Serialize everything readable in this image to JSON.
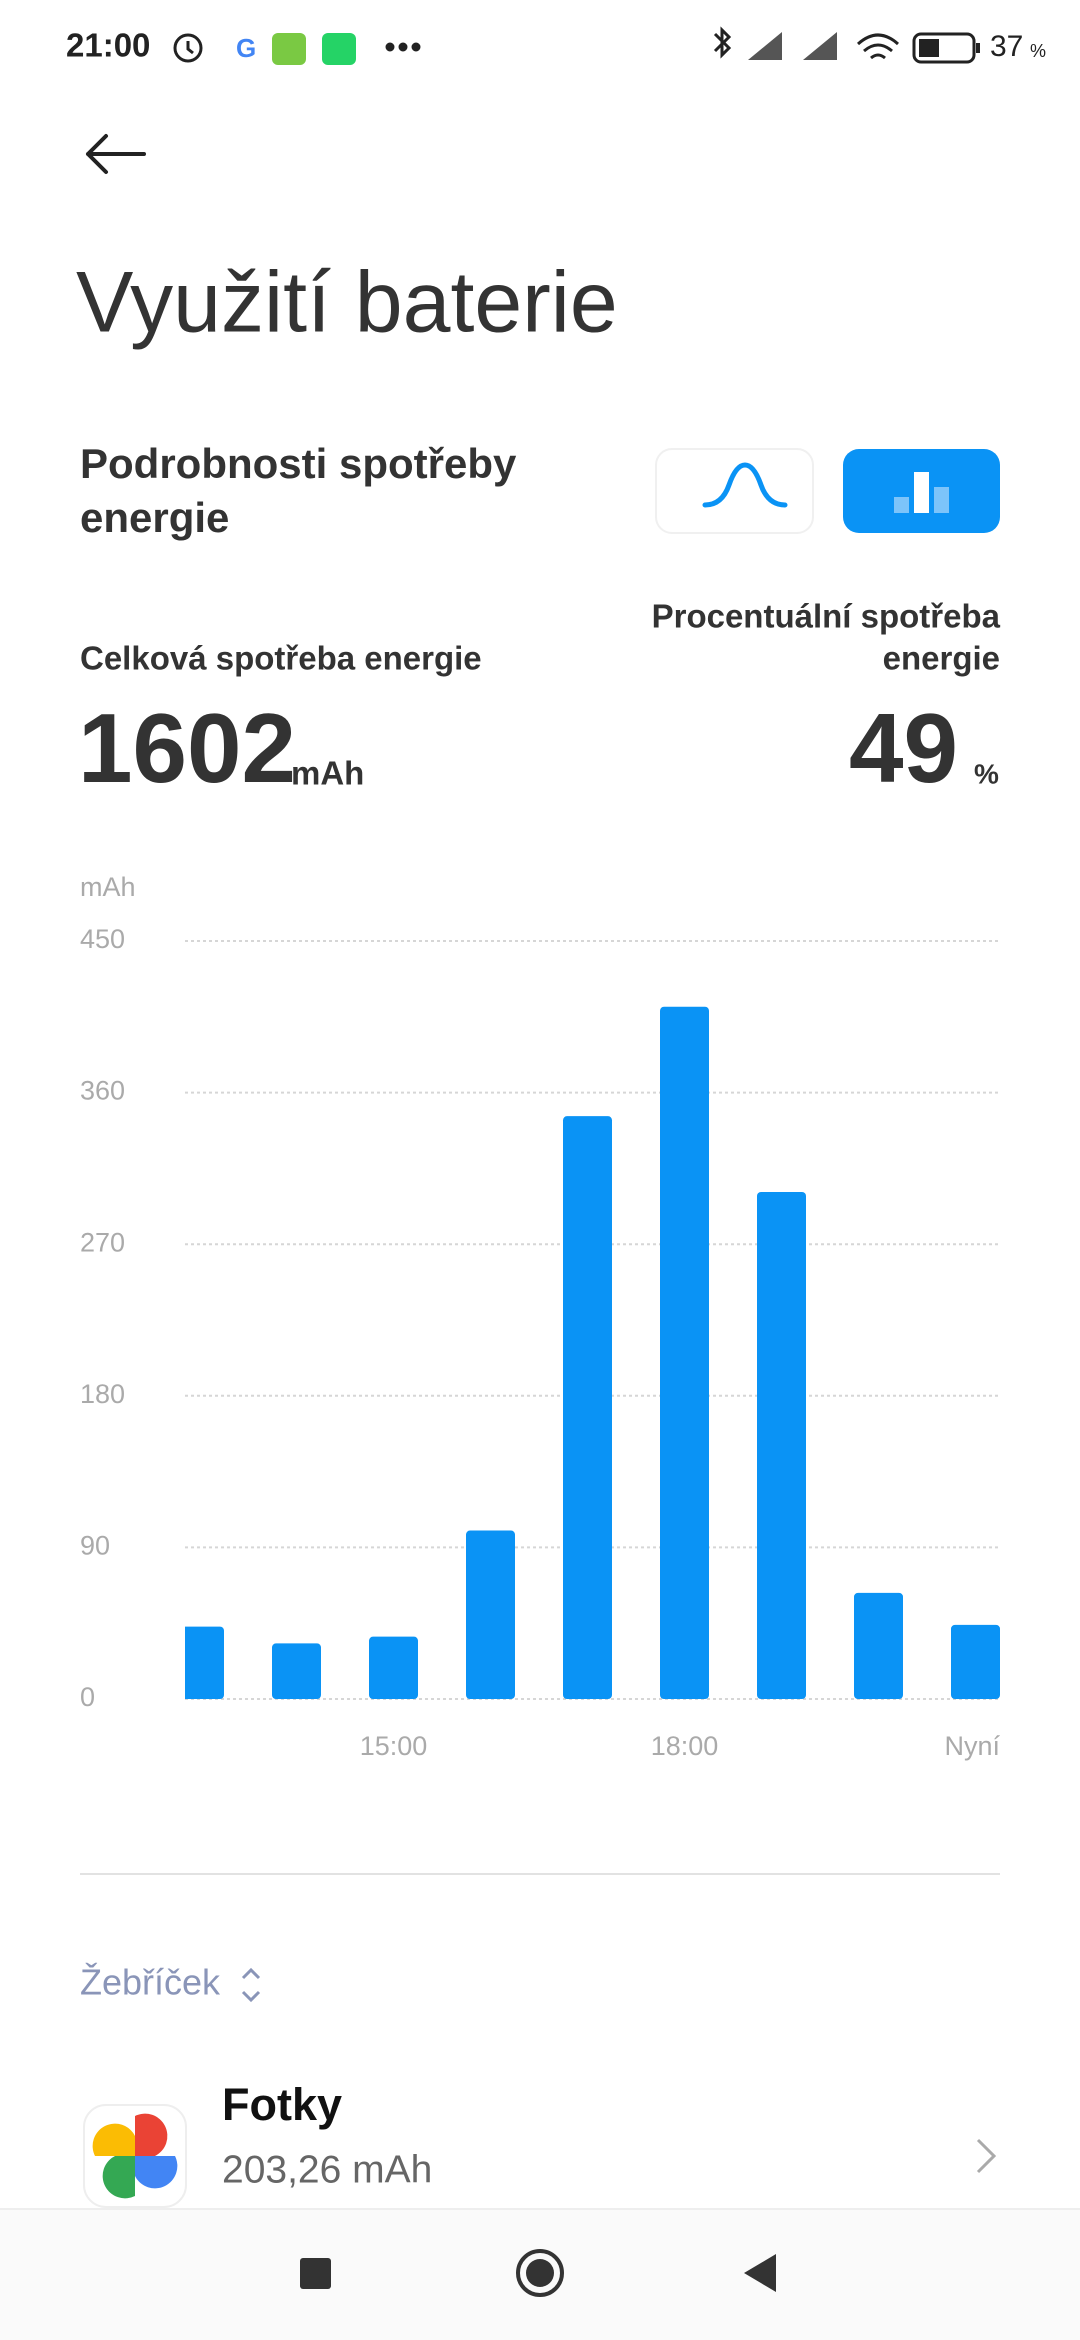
{
  "status_bar": {
    "time": "21:00",
    "battery": "37",
    "battery_unit": "%"
  },
  "header": {
    "title": "Využití baterie"
  },
  "section": {
    "title_line1": "Podrobnosti spotřeby",
    "title_line2": "energie"
  },
  "summary": {
    "total_label": "Celková spotřeba energie",
    "total_value": "1602",
    "total_unit": "mAh",
    "percent_label_line1": "Procentuální spotřeba",
    "percent_label_line2": "energie",
    "percent_value": "49",
    "percent_unit": "%"
  },
  "chart_data": {
    "type": "bar",
    "y_unit": "mAh",
    "categories": [
      null,
      null,
      "15:00",
      null,
      null,
      "18:00",
      null,
      null,
      "Nyní"
    ],
    "values": [
      43,
      33,
      37,
      100,
      346,
      411,
      301,
      63,
      44
    ],
    "color": "#0a93f5",
    "ylim": [
      0,
      450
    ],
    "yticks": [
      0,
      90,
      180,
      270,
      360,
      450
    ],
    "grid": true
  },
  "ranking": {
    "label": "Žebříček"
  },
  "apps": [
    {
      "name": "Fotky",
      "usage": "203,26 mAh"
    }
  ]
}
